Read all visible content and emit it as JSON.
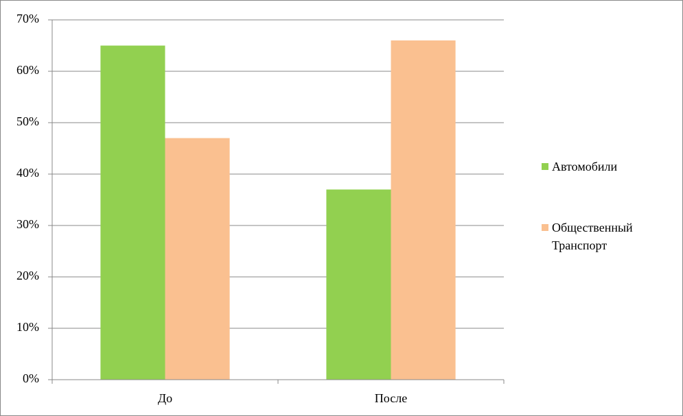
{
  "chart_data": {
    "type": "bar",
    "categories": [
      "До",
      "После"
    ],
    "series": [
      {
        "name": "Автомобили",
        "color": "#92d050",
        "values": [
          65,
          37
        ]
      },
      {
        "name": "Общественный Транспорт",
        "color": "#fac090",
        "values": [
          47,
          66
        ]
      }
    ],
    "ylim": [
      0,
      70
    ],
    "yticks": [
      {
        "value": 0,
        "label": "0%"
      },
      {
        "value": 10,
        "label": "10%"
      },
      {
        "value": 20,
        "label": "20%"
      },
      {
        "value": 30,
        "label": "30%"
      },
      {
        "value": 40,
        "label": "40%"
      },
      {
        "value": 50,
        "label": "50%"
      },
      {
        "value": 60,
        "label": "60%"
      },
      {
        "value": 70,
        "label": "70%"
      }
    ],
    "grid": true,
    "legend": "right"
  }
}
